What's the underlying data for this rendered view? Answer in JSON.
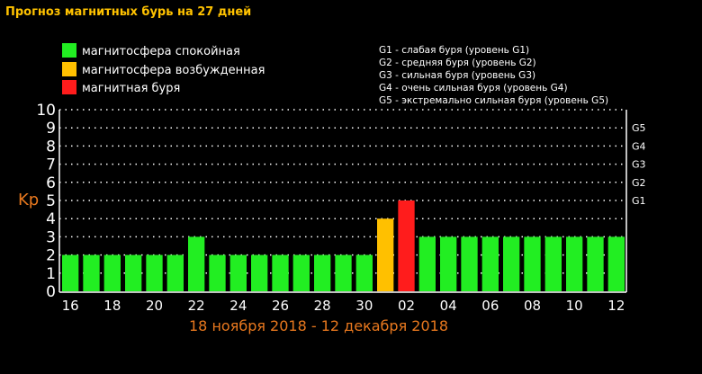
{
  "chart_data": {
    "type": "bar",
    "title": "Прогноз магнитных бурь на 27 дней",
    "ylabel": "Kp",
    "xlabel": "18 ноября 2018 - 12 декабря 2018",
    "ylim": [
      0,
      10
    ],
    "yticks": [
      0,
      1,
      2,
      3,
      4,
      5,
      6,
      7,
      8,
      9,
      10
    ],
    "grid": true,
    "legend": [
      {
        "label": "магнитосфера спокойная",
        "color": "#22ee22"
      },
      {
        "label": "магнитосфера возбужденная",
        "color": "#ffc000"
      },
      {
        "label": "магнитная буря",
        "color": "#ff1c1c"
      }
    ],
    "g_legend": [
      "G1 - слабая буря (уровень G1)",
      "G2 - средняя буря (уровень G2)",
      "G3 - сильная буря (уровень G3)",
      "G4 - очень сильная буря (уровень G4)",
      "G5 - экстремально сильная буря (уровень G5)"
    ],
    "g_levels": [
      {
        "label": "G1",
        "kp": 5
      },
      {
        "label": "G2",
        "kp": 6
      },
      {
        "label": "G3",
        "kp": 7
      },
      {
        "label": "G4",
        "kp": 8
      },
      {
        "label": "G5",
        "kp": 9
      }
    ],
    "xtick_labels": [
      "16",
      "18",
      "20",
      "22",
      "24",
      "26",
      "28",
      "30",
      "02",
      "04",
      "06",
      "08",
      "10",
      "12"
    ],
    "values": [
      2,
      2,
      2,
      2,
      2,
      2,
      3,
      2,
      2,
      2,
      2,
      2,
      2,
      2,
      2,
      4,
      5,
      3,
      3,
      3,
      3,
      3,
      3,
      3,
      3,
      3,
      3
    ],
    "colors": [
      "#22ee22",
      "#22ee22",
      "#22ee22",
      "#22ee22",
      "#22ee22",
      "#22ee22",
      "#22ee22",
      "#22ee22",
      "#22ee22",
      "#22ee22",
      "#22ee22",
      "#22ee22",
      "#22ee22",
      "#22ee22",
      "#22ee22",
      "#ffc000",
      "#ff1c1c",
      "#22ee22",
      "#22ee22",
      "#22ee22",
      "#22ee22",
      "#22ee22",
      "#22ee22",
      "#22ee22",
      "#22ee22",
      "#22ee22",
      "#22ee22"
    ]
  }
}
